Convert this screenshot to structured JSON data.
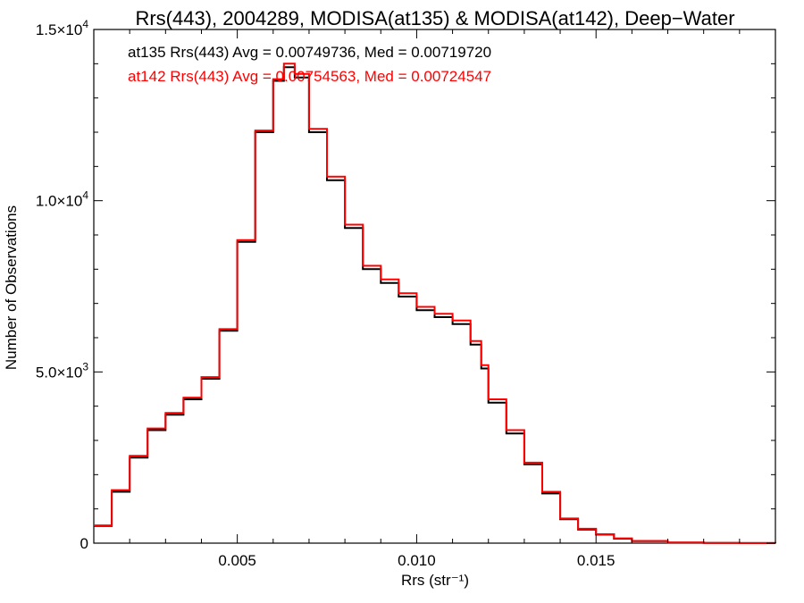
{
  "chart_data": {
    "type": "line",
    "title": "Rrs(443), 2004289, MODISA(at135) & MODISA(at142), Deep−Water",
    "xlabel": "Rrs (str⁻¹)",
    "ylabel": "Number of Observations",
    "xlim": [
      0.001,
      0.02
    ],
    "ylim": [
      0,
      15000
    ],
    "x_ticks": [
      {
        "value": 0.005,
        "label": "0.005"
      },
      {
        "value": 0.01,
        "label": "0.010"
      },
      {
        "value": 0.015,
        "label": "0.015"
      }
    ],
    "y_ticks": [
      {
        "value": 0,
        "mant": "0",
        "exp": ""
      },
      {
        "value": 5000,
        "mant": "5.0×10",
        "exp": "3"
      },
      {
        "value": 10000,
        "mant": "1.0×10",
        "exp": "4"
      },
      {
        "value": 15000,
        "mant": "1.5×10",
        "exp": "4"
      }
    ],
    "grid": false,
    "legend_position": "top-left",
    "series": [
      {
        "name": "at135 Rrs(443) Avg = 0.00749736, Med = 0.00719720",
        "color": "#000000",
        "step": true,
        "x": [
          0.001,
          0.0015,
          0.002,
          0.0025,
          0.003,
          0.0035,
          0.004,
          0.0045,
          0.005,
          0.0055,
          0.006,
          0.0063,
          0.0066,
          0.007,
          0.0075,
          0.008,
          0.0085,
          0.009,
          0.0093,
          0.0095,
          0.01,
          0.0105,
          0.011,
          0.0115,
          0.0117,
          0.0118,
          0.012,
          0.0125,
          0.013,
          0.0135,
          0.014,
          0.0145,
          0.015,
          0.0155,
          0.016,
          0.017,
          0.018,
          0.019,
          0.02
        ],
        "y": [
          500,
          1500,
          2500,
          3300,
          3750,
          4200,
          4800,
          6200,
          8800,
          12000,
          13500,
          13900,
          13600,
          12000,
          10600,
          9200,
          8000,
          7600,
          7600,
          7200,
          6800,
          6600,
          6400,
          5800,
          5800,
          5100,
          4100,
          3200,
          2300,
          1450,
          700,
          400,
          250,
          130,
          60,
          15,
          5,
          2,
          0
        ]
      },
      {
        "name": "at142 Rrs(443) Avg = 0.00754563, Med = 0.00724547",
        "color": "#ff0000",
        "step": true,
        "x": [
          0.001,
          0.0015,
          0.002,
          0.0025,
          0.003,
          0.0035,
          0.004,
          0.0045,
          0.005,
          0.0055,
          0.006,
          0.0063,
          0.0066,
          0.007,
          0.0075,
          0.008,
          0.0085,
          0.009,
          0.0093,
          0.0095,
          0.01,
          0.0105,
          0.011,
          0.0115,
          0.0117,
          0.0118,
          0.012,
          0.0125,
          0.013,
          0.0135,
          0.014,
          0.0145,
          0.015,
          0.0155,
          0.016,
          0.017,
          0.018,
          0.019,
          0.02
        ],
        "y": [
          520,
          1550,
          2550,
          3350,
          3800,
          4250,
          4850,
          6250,
          8850,
          12050,
          13550,
          14000,
          13700,
          12100,
          10700,
          9300,
          8100,
          7700,
          7700,
          7300,
          6900,
          6700,
          6500,
          5900,
          5900,
          5200,
          4200,
          3300,
          2350,
          1500,
          720,
          420,
          260,
          140,
          65,
          18,
          6,
          2,
          0
        ]
      }
    ]
  }
}
